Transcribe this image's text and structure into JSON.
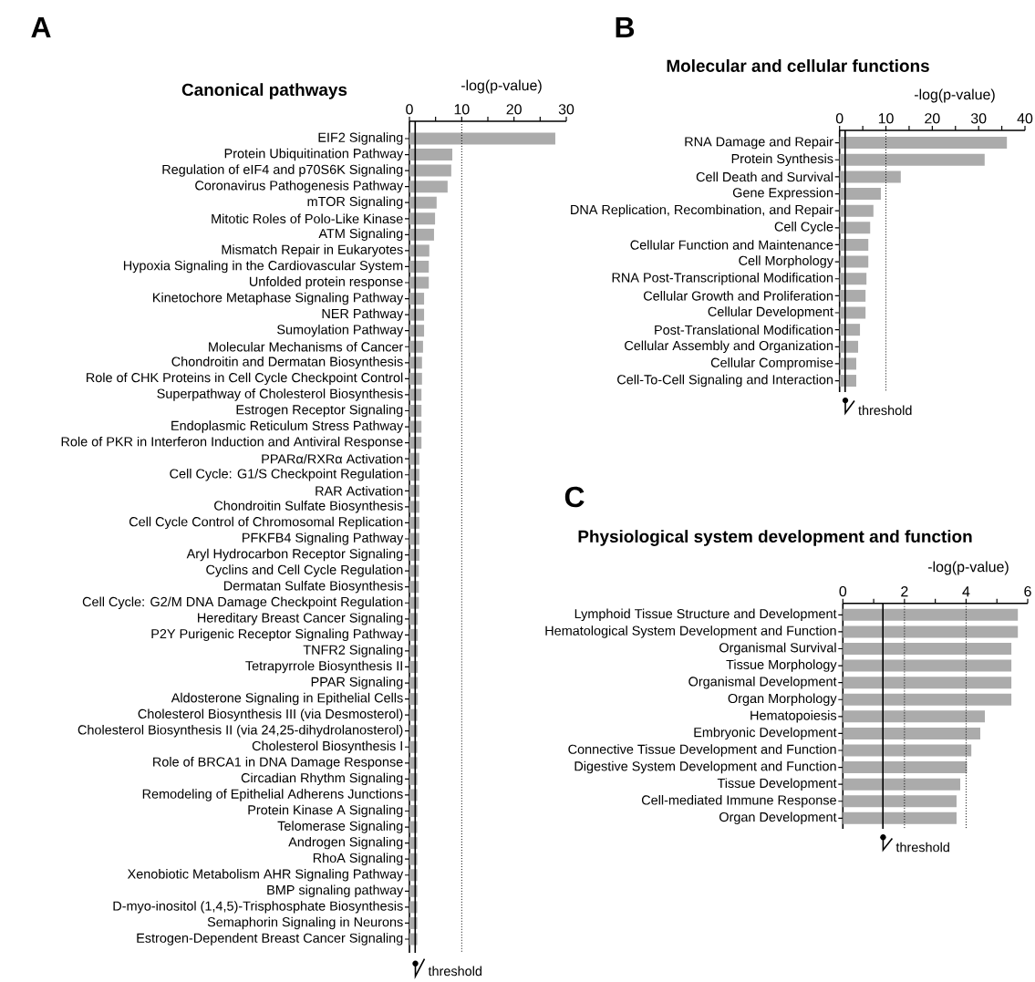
{
  "chart_data": [
    {
      "type": "bar",
      "orientation": "horizontal",
      "title": "Canonical pathways",
      "xlabel": "-log(p-value)",
      "annotations": [
        "A"
      ],
      "color": "#ababab",
      "xlim": [
        0,
        30
      ],
      "xticks": [
        0,
        {
          "value": 5,
          "label": null
        },
        10,
        {
          "value": 15,
          "label": null
        },
        20,
        {
          "value": 25,
          "label": null
        },
        30
      ],
      "ref_lines": [
        {
          "axis": "x",
          "value": 10,
          "line_style": "dotted",
          "color": "#000000"
        },
        {
          "axis": "x",
          "value": 1.1,
          "label": "threshold",
          "line_style": "solid",
          "color": "#000000"
        }
      ],
      "categories": [
        "EIF2 Signaling",
        "Protein Ubiquitination Pathway",
        "Regulation of eIF4 and p70S6K Signaling",
        "Coronavirus Pathogenesis Pathway",
        "mTOR Signaling",
        "Mitotic Roles of Polo-Like Kinase",
        "ATM Signaling",
        "Mismatch Repair in Eukaryotes",
        "Hypoxia Signaling in the Cardiovascular System",
        "Unfolded protein response",
        "Kinetochore Metaphase Signaling Pathway",
        "NER Pathway",
        "Sumoylation Pathway",
        "Molecular Mechanisms of Cancer",
        "Chondroitin and Dermatan Biosynthesis",
        "Role of CHK Proteins in Cell Cycle Checkpoint Control",
        "Superpathway of Cholesterol Biosynthesis",
        "Estrogen Receptor Signaling",
        "Endoplasmic Reticulum Stress Pathway",
        "Role of PKR in Interferon Induction and Antiviral Response",
        "PPARα/RXRα Activation",
        "Cell Cycle: G1/S Checkpoint Regulation",
        "RAR Activation",
        "Chondroitin Sulfate Biosynthesis",
        "Cell Cycle Control of Chromosomal Replication",
        "PFKFB4 Signaling Pathway",
        "Aryl Hydrocarbon Receptor Signaling",
        "Cyclins and Cell Cycle Regulation",
        "Dermatan Sulfate Biosynthesis",
        "Cell Cycle: G2/M DNA Damage Checkpoint Regulation",
        "Hereditary Breast Cancer Signaling",
        "P2Y Purigenic Receptor Signaling Pathway",
        "TNFR2 Signaling",
        "Tetrapyrrole Biosynthesis II",
        "PPAR Signaling",
        "Aldosterone Signaling in Epithelial Cells",
        "Cholesterol Biosynthesis III (via Desmosterol)",
        "Cholesterol Biosynthesis II (via 24,25-dihydrolanosterol)",
        "Cholesterol Biosynthesis I",
        "Role of BRCA1 in DNA Damage Response",
        "Circadian Rhythm Signaling",
        "Remodeling of Epithelial Adherens Junctions",
        "Protein Kinase A Signaling",
        "Telomerase Signaling",
        "Androgen Signaling",
        "RhoA Signaling",
        "Xenobiotic Metabolism AHR Signaling Pathway",
        "BMP signaling pathway",
        "D-myo-inositol (1,4,5)-Trisphosphate Biosynthesis",
        "Semaphorin Signaling in Neurons",
        "Estrogen-Dependent Breast Cancer Signaling"
      ],
      "values": [
        27.9,
        8.2,
        8.0,
        7.3,
        5.2,
        4.9,
        4.7,
        3.8,
        3.7,
        3.7,
        2.8,
        2.8,
        2.8,
        2.6,
        2.4,
        2.4,
        2.3,
        2.3,
        2.3,
        2.3,
        1.9,
        1.9,
        1.9,
        1.9,
        1.9,
        1.9,
        1.9,
        1.8,
        1.8,
        1.8,
        1.6,
        1.6,
        1.6,
        1.6,
        1.6,
        1.6,
        1.5,
        1.5,
        1.5,
        1.5,
        1.5,
        1.5,
        1.5,
        1.5,
        1.5,
        1.5,
        1.5,
        1.5,
        1.5,
        1.5,
        1.5
      ]
    },
    {
      "type": "bar",
      "orientation": "horizontal",
      "title": "Molecular and cellular functions",
      "xlabel": "-log(p-value)",
      "annotations": [
        "B"
      ],
      "color": "#ababab",
      "xlim": [
        0,
        40
      ],
      "xticks": [
        0,
        {
          "value": 5,
          "label": null
        },
        10,
        {
          "value": 15,
          "label": null
        },
        20,
        {
          "value": 25,
          "label": null
        },
        30,
        {
          "value": 35,
          "label": null
        },
        40
      ],
      "ref_lines": [
        {
          "axis": "x",
          "value": 10,
          "line_style": "dotted",
          "color": "#000000"
        },
        {
          "axis": "x",
          "value": 1.2,
          "label": "threshold",
          "line_style": "solid",
          "color": "#000000"
        }
      ],
      "categories": [
        "RNA Damage and Repair",
        "Protein Synthesis",
        "Cell Death and Survival",
        "Gene Expression",
        "DNA Replication, Recombination, and Repair",
        "Cell Cycle",
        "Cellular Function and Maintenance",
        "Cell Morphology",
        "RNA Post-Transcriptional Modification",
        "Cellular Growth and Proliferation",
        "Cellular Development",
        "Post-Translational Modification",
        "Cellular Assembly and Organization",
        "Cellular Compromise",
        "Cell-To-Cell Signaling and Interaction"
      ],
      "values": [
        36.1,
        31.3,
        13.2,
        8.9,
        7.3,
        6.6,
        6.2,
        6.2,
        5.8,
        5.6,
        5.6,
        4.4,
        4.0,
        3.6,
        3.6
      ]
    },
    {
      "type": "bar",
      "orientation": "horizontal",
      "title": "Physiological system development and function",
      "xlabel": "-log(p-value)",
      "annotations": [
        "C"
      ],
      "color": "#ababab",
      "xlim": [
        0,
        6
      ],
      "xticks": [
        0,
        {
          "value": 1,
          "label": null
        },
        2,
        {
          "value": 3,
          "label": null
        },
        4,
        {
          "value": 5,
          "label": null
        },
        6
      ],
      "ref_lines": [
        {
          "axis": "x",
          "value": 2,
          "line_style": "dotted",
          "color": "#000000"
        },
        {
          "axis": "x",
          "value": 4,
          "line_style": "dotted",
          "color": "#000000"
        },
        {
          "axis": "x",
          "value": 1.3,
          "label": "threshold",
          "line_style": "solid",
          "color": "#000000"
        }
      ],
      "categories": [
        "Lymphoid Tissue Structure and Development",
        "Hematological System Development and Function",
        "Organismal Survival",
        "Tissue Morphology",
        "Organismal Development",
        "Organ Morphology",
        "Hematopoiesis",
        "Embryonic Development",
        "Connective Tissue Development and Function",
        "Digestive System Development and Function",
        "Tissue Development",
        "Cell-mediated Immune Response",
        "Organ Development"
      ],
      "values": [
        5.68,
        5.68,
        5.47,
        5.47,
        5.47,
        5.47,
        4.61,
        4.46,
        4.17,
        4.03,
        3.81,
        3.69,
        3.69
      ]
    }
  ]
}
